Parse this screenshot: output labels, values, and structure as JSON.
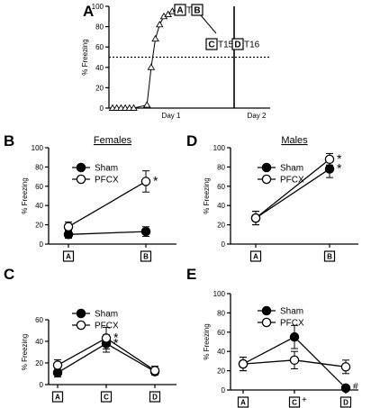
{
  "chart_data": [
    {
      "panel": "A",
      "type": "line",
      "ylabel": "% Freezing",
      "ylim": [
        0,
        100
      ],
      "yticks": [
        0,
        20,
        40,
        60,
        80,
        100
      ],
      "day_labels": [
        "Day 1",
        "Day 2"
      ],
      "threshold": 50,
      "x": [
        1,
        2,
        3,
        4,
        5,
        6,
        7,
        8,
        9,
        10,
        11,
        12,
        13,
        14,
        15
      ],
      "values": [
        0,
        0,
        0,
        0,
        0,
        0,
        3,
        40,
        68,
        82,
        90,
        92,
        95,
        97,
        97
      ],
      "boxes": [
        {
          "label": "A",
          "suffix": "T1"
        },
        {
          "label": "B",
          "suffix": ""
        },
        {
          "label": "C",
          "suffix": "T15"
        },
        {
          "label": "D",
          "suffix": "T16"
        }
      ]
    },
    {
      "panel": "B",
      "type": "line",
      "title": "Females",
      "ylabel": "% Freezing",
      "ylim": [
        0,
        100
      ],
      "yticks": [
        0,
        20,
        40,
        60,
        80,
        100
      ],
      "categories": [
        "A",
        "B"
      ],
      "series": [
        {
          "name": "Sham",
          "marker": "filled",
          "values": [
            10,
            13
          ],
          "errors": [
            4,
            5
          ]
        },
        {
          "name": "PFCX",
          "marker": "open",
          "values": [
            18,
            65
          ],
          "errors": [
            5,
            11
          ]
        }
      ],
      "annotations": [
        {
          "text": "*",
          "series": "PFCX",
          "index": 1
        }
      ]
    },
    {
      "panel": "C",
      "type": "line",
      "ylabel": "% Freezing",
      "ylim": [
        0,
        60
      ],
      "yticks": [
        0,
        20,
        40,
        60
      ],
      "categories": [
        "A",
        "C",
        "D"
      ],
      "series": [
        {
          "name": "Sham",
          "marker": "filled",
          "values": [
            11,
            38,
            12
          ],
          "errors": [
            4,
            8,
            3
          ]
        },
        {
          "name": "PFCX",
          "marker": "open",
          "values": [
            18,
            43,
            13
          ],
          "errors": [
            5,
            10,
            4
          ]
        }
      ],
      "annotations": [
        {
          "text": "*",
          "series": "PFCX",
          "index": 1
        },
        {
          "text": "*",
          "series": "Sham",
          "index": 1
        }
      ]
    },
    {
      "panel": "D",
      "type": "line",
      "title": "Males",
      "ylabel": "% Freezing",
      "ylim": [
        0,
        100
      ],
      "yticks": [
        0,
        20,
        40,
        60,
        80,
        100
      ],
      "categories": [
        "A",
        "B"
      ],
      "series": [
        {
          "name": "Sham",
          "marker": "filled",
          "values": [
            27,
            78
          ],
          "errors": [
            7,
            9
          ]
        },
        {
          "name": "PFCX",
          "marker": "open",
          "values": [
            27,
            88
          ],
          "errors": [
            7,
            6
          ]
        }
      ],
      "annotations": [
        {
          "text": "*",
          "series": "PFCX",
          "index": 1
        },
        {
          "text": "*",
          "series": "Sham",
          "index": 1
        }
      ]
    },
    {
      "panel": "E",
      "type": "line",
      "ylabel": "% Freezing",
      "ylim": [
        0,
        100
      ],
      "yticks": [
        0,
        20,
        40,
        60,
        80,
        100
      ],
      "categories": [
        "A",
        "C",
        "D"
      ],
      "series": [
        {
          "name": "Sham",
          "marker": "filled",
          "values": [
            27,
            55,
            2
          ],
          "errors": [
            7,
            12,
            2
          ]
        },
        {
          "name": "PFCX",
          "marker": "open",
          "values": [
            27,
            31,
            24
          ],
          "errors": [
            7,
            9,
            7
          ]
        }
      ],
      "annotations": [
        {
          "text": "#",
          "series": "Sham",
          "index": 2
        },
        {
          "text": "+",
          "category": "C"
        }
      ]
    }
  ]
}
